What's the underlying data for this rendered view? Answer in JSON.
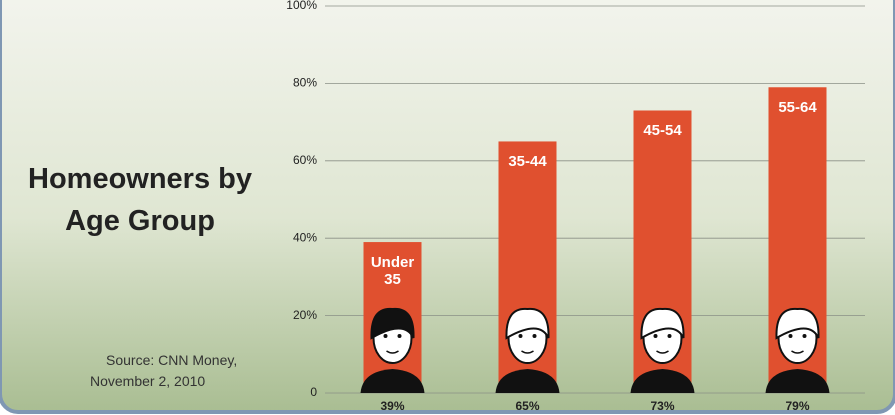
{
  "chart_data": {
    "type": "bar",
    "title": "Homeowners by Age Group",
    "source": "Source: CNN Money, November 2, 2010",
    "categories": [
      "Under 35",
      "35-44",
      "45-54",
      "55-64"
    ],
    "values": [
      39,
      65,
      73,
      79
    ],
    "value_labels": [
      "39%",
      "65%",
      "73%",
      "79%"
    ],
    "color": "#e0502f",
    "ylim": [
      0,
      100
    ],
    "yticks": [
      0,
      {
        "value": 20,
        "label": "20%"
      },
      {
        "value": 40,
        "label": "40%"
      },
      {
        "value": 60,
        "label": "60%"
      },
      {
        "value": 80,
        "label": "80%"
      },
      {
        "value": 100,
        "label": "100%"
      }
    ],
    "grid": true
  }
}
